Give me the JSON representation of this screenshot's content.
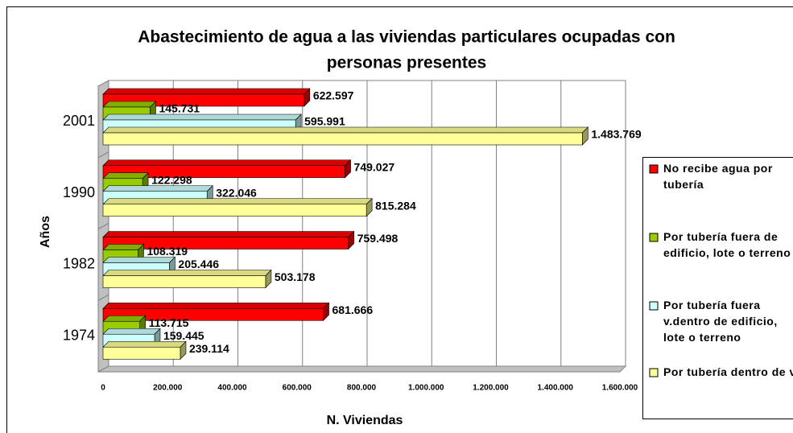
{
  "chart_data": {
    "type": "bar",
    "orientation": "horizontal",
    "title": "Abastecimiento de agua a las viviendas particulares ocupadas con personas presentes",
    "x_label": "N. Viviendas",
    "y_label": "Años",
    "categories": [
      "2001",
      "1990",
      "1982",
      "1974"
    ],
    "series": [
      {
        "name": "No recibe agua por tubería",
        "color": "#ff0000",
        "values": [
          622597,
          749027,
          759498,
          681666
        ],
        "value_labels": [
          "622.597",
          "749.027",
          "759.498",
          "681.666"
        ]
      },
      {
        "name": "Por tubería fuera de edificio, lote o terreno",
        "color": "#99cc00",
        "values": [
          145731,
          122298,
          108319,
          113715
        ],
        "value_labels": [
          "145.731",
          "122.298",
          "108.319",
          "113.715"
        ]
      },
      {
        "name": "Por tubería fuera v.dentro de edificio, lote o terreno",
        "color": "#ccffff",
        "values": [
          595991,
          322046,
          205446,
          159445
        ],
        "value_labels": [
          "595.991",
          "322.046",
          "205.446",
          "159.445"
        ]
      },
      {
        "name": "Por tubería dentro de v.",
        "color": "#ffff99",
        "values": [
          1483769,
          815284,
          503178,
          239114
        ],
        "value_labels": [
          "1.483.769",
          "815.284",
          "503.178",
          "239.114"
        ]
      }
    ],
    "xlim": [
      0,
      1600000
    ],
    "xticks": [
      0,
      {
        "value": 200000,
        "label": "200.000"
      },
      {
        "value": 400000,
        "label": "400.000"
      },
      {
        "value": 600000,
        "label": "600.000"
      },
      {
        "value": 800000,
        "label": "800.000"
      },
      {
        "value": 1000000,
        "label": "1.000.000"
      },
      {
        "value": 1200000,
        "label": "1.200.000"
      },
      {
        "value": 1400000,
        "label": "1.400.000"
      },
      {
        "value": 1600000,
        "label": "1.600.000"
      }
    ],
    "grid": true,
    "legend": "right"
  }
}
